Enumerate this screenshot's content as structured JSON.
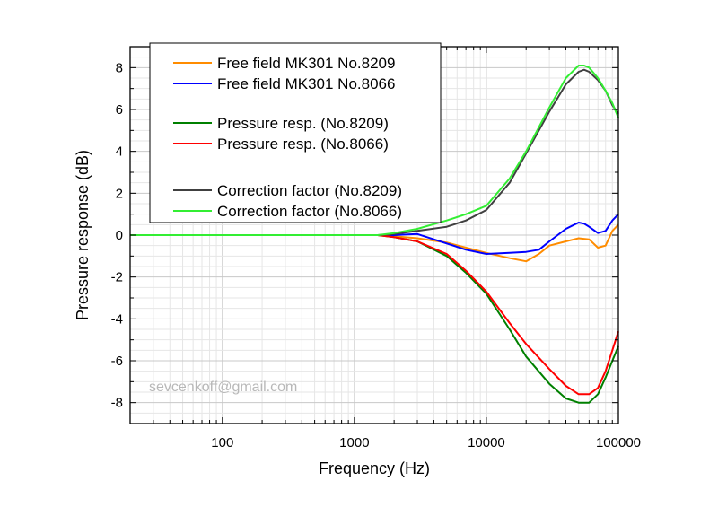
{
  "chart_data": {
    "type": "line",
    "xlabel": "Frequency (Hz)",
    "ylabel": "Pressure response (dB)",
    "xscale": "log",
    "xlim": [
      20,
      100000
    ],
    "ylim": [
      -9,
      9
    ],
    "xticks": [
      100,
      1000,
      10000,
      100000
    ],
    "xtick_labels": [
      "100",
      "1000",
      "10000",
      "100000"
    ],
    "yticks": [
      -8,
      -6,
      -4,
      -2,
      0,
      2,
      4,
      6,
      8
    ],
    "ytick_labels": [
      "-8",
      "-6",
      "-4",
      "-2",
      "0",
      "2",
      "4",
      "6",
      "8"
    ],
    "grid": true,
    "legend_position": "top-left",
    "watermark": "sevcenkoff@gmail.com",
    "series": [
      {
        "name": "Free field MK301 No.8209",
        "color": "#ff8c00",
        "x": [
          20,
          1000,
          1500,
          2000,
          3000,
          5000,
          7000,
          10000,
          15000,
          20000,
          25000,
          30000,
          40000,
          50000,
          60000,
          70000,
          80000,
          90000,
          100000
        ],
        "y": [
          0,
          0,
          0,
          -0.05,
          -0.15,
          -0.35,
          -0.6,
          -0.85,
          -1.1,
          -1.25,
          -0.9,
          -0.5,
          -0.3,
          -0.15,
          -0.2,
          -0.6,
          -0.5,
          0.2,
          0.5
        ]
      },
      {
        "name": "Free field MK301 No.8066",
        "color": "#0000ff",
        "x": [
          20,
          1000,
          1500,
          2000,
          3000,
          5000,
          7000,
          10000,
          15000,
          20000,
          25000,
          30000,
          40000,
          50000,
          55000,
          60000,
          70000,
          80000,
          90000,
          100000
        ],
        "y": [
          0,
          0,
          0,
          0,
          0.05,
          -0.4,
          -0.7,
          -0.9,
          -0.85,
          -0.8,
          -0.7,
          -0.3,
          0.3,
          0.6,
          0.55,
          0.4,
          0.1,
          0.2,
          0.7,
          1.0
        ]
      },
      {
        "name": "Pressure resp. (No.8209)",
        "color": "#008000",
        "x": [
          20,
          1000,
          1500,
          2000,
          3000,
          5000,
          7000,
          10000,
          15000,
          20000,
          30000,
          40000,
          50000,
          60000,
          70000,
          80000,
          90000,
          100000
        ],
        "y": [
          0,
          0,
          0,
          -0.1,
          -0.3,
          -1.0,
          -1.8,
          -2.8,
          -4.5,
          -5.8,
          -7.1,
          -7.8,
          -8.0,
          -8.0,
          -7.6,
          -6.8,
          -6.0,
          -5.3
        ]
      },
      {
        "name": "Pressure resp. (No.8066)",
        "color": "#ff0000",
        "x": [
          20,
          1000,
          1500,
          2000,
          3000,
          5000,
          7000,
          10000,
          15000,
          20000,
          30000,
          40000,
          50000,
          60000,
          70000,
          80000,
          90000,
          100000
        ],
        "y": [
          0,
          0,
          0,
          -0.1,
          -0.3,
          -0.9,
          -1.7,
          -2.7,
          -4.2,
          -5.2,
          -6.4,
          -7.2,
          -7.6,
          -7.6,
          -7.3,
          -6.5,
          -5.5,
          -4.6
        ]
      },
      {
        "name": "Correction factor (No.8209)",
        "color": "#404040",
        "x": [
          20,
          1000,
          1500,
          2000,
          3000,
          5000,
          7000,
          10000,
          15000,
          20000,
          30000,
          40000,
          50000,
          55000,
          60000,
          70000,
          80000,
          90000,
          100000
        ],
        "y": [
          0,
          0,
          0,
          0.05,
          0.2,
          0.4,
          0.7,
          1.2,
          2.5,
          3.9,
          5.9,
          7.2,
          7.8,
          7.9,
          7.8,
          7.4,
          6.9,
          6.2,
          5.8
        ]
      },
      {
        "name": "Correction factor (No.8066)",
        "color": "#33ee33",
        "x": [
          20,
          1000,
          1500,
          2000,
          3000,
          5000,
          7000,
          10000,
          15000,
          20000,
          30000,
          40000,
          50000,
          55000,
          60000,
          70000,
          80000,
          90000,
          100000
        ],
        "y": [
          0,
          0,
          0,
          0.1,
          0.3,
          0.7,
          1.0,
          1.4,
          2.7,
          4.0,
          6.1,
          7.5,
          8.1,
          8.1,
          8.0,
          7.5,
          6.9,
          6.3,
          5.6
        ]
      }
    ]
  }
}
